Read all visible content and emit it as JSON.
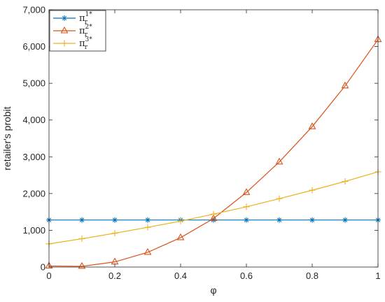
{
  "chart_data": {
    "type": "line",
    "xlabel": "φ",
    "ylabel": "retailer's probit",
    "xlim": [
      0,
      1
    ],
    "ylim": [
      0,
      7000
    ],
    "x_ticks": [
      0,
      0.2,
      0.4,
      0.6,
      0.8,
      1
    ],
    "x_tick_labels": [
      "0",
      "0.2",
      "0.4",
      "0.6",
      "0.8",
      "1"
    ],
    "y_ticks": [
      0,
      1000,
      2000,
      3000,
      4000,
      5000,
      6000,
      7000
    ],
    "y_tick_labels": [
      "0",
      "1,000",
      "2,000",
      "3,000",
      "4,000",
      "5,000",
      "6,000",
      "7,000"
    ],
    "grid": false,
    "legend_position": "top-left",
    "x": [
      0,
      0.1,
      0.2,
      0.3,
      0.4,
      0.5,
      0.6,
      0.7,
      0.8,
      0.9,
      1
    ],
    "series": [
      {
        "legend_base": "π",
        "legend_sub": "r",
        "legend_sup": "1*",
        "color": "#0072BD",
        "marker": "asterisk",
        "values": [
          1280,
          1280,
          1280,
          1280,
          1280,
          1280,
          1280,
          1280,
          1280,
          1280,
          1280
        ]
      },
      {
        "legend_base": "π",
        "legend_sub": "r",
        "legend_sup": "2*",
        "color": "#D95319",
        "marker": "triangle",
        "values": [
          30,
          20,
          140,
          400,
          800,
          1320,
          2030,
          2860,
          3820,
          4930,
          6190
        ]
      },
      {
        "legend_base": "π",
        "legend_sub": "r",
        "legend_sup": "3*",
        "color": "#EDB120",
        "marker": "plus",
        "values": [
          630,
          770,
          920,
          1080,
          1250,
          1440,
          1640,
          1860,
          2090,
          2330,
          2590
        ]
      }
    ]
  }
}
